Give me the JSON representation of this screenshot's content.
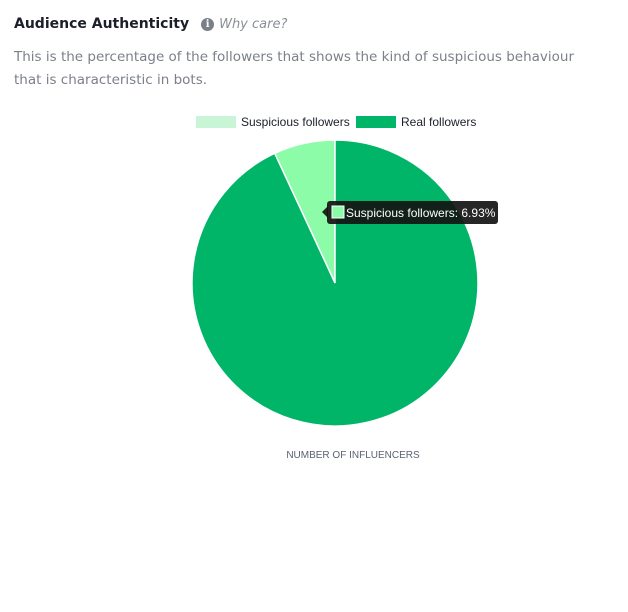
{
  "header": {
    "title": "Audience Authenticity",
    "info_icon": "info-icon",
    "why_care": "Why care?"
  },
  "description": "This is the percentage of the followers that shows the kind of suspicious behaviour that is characteristic in bots.",
  "chart_data": {
    "type": "pie",
    "series": [
      {
        "name": "Suspicious followers",
        "value": 6.93,
        "color": "#8cfca8",
        "legend_color": "#c8f5d6"
      },
      {
        "name": "Real followers",
        "value": 93.07,
        "color": "#00b468",
        "legend_color": "#00b468"
      }
    ],
    "legend_position": "top",
    "tooltip": "Suspicious followers: 6.93%",
    "xlabel": "NUMBER OF INFLUENCERS"
  }
}
